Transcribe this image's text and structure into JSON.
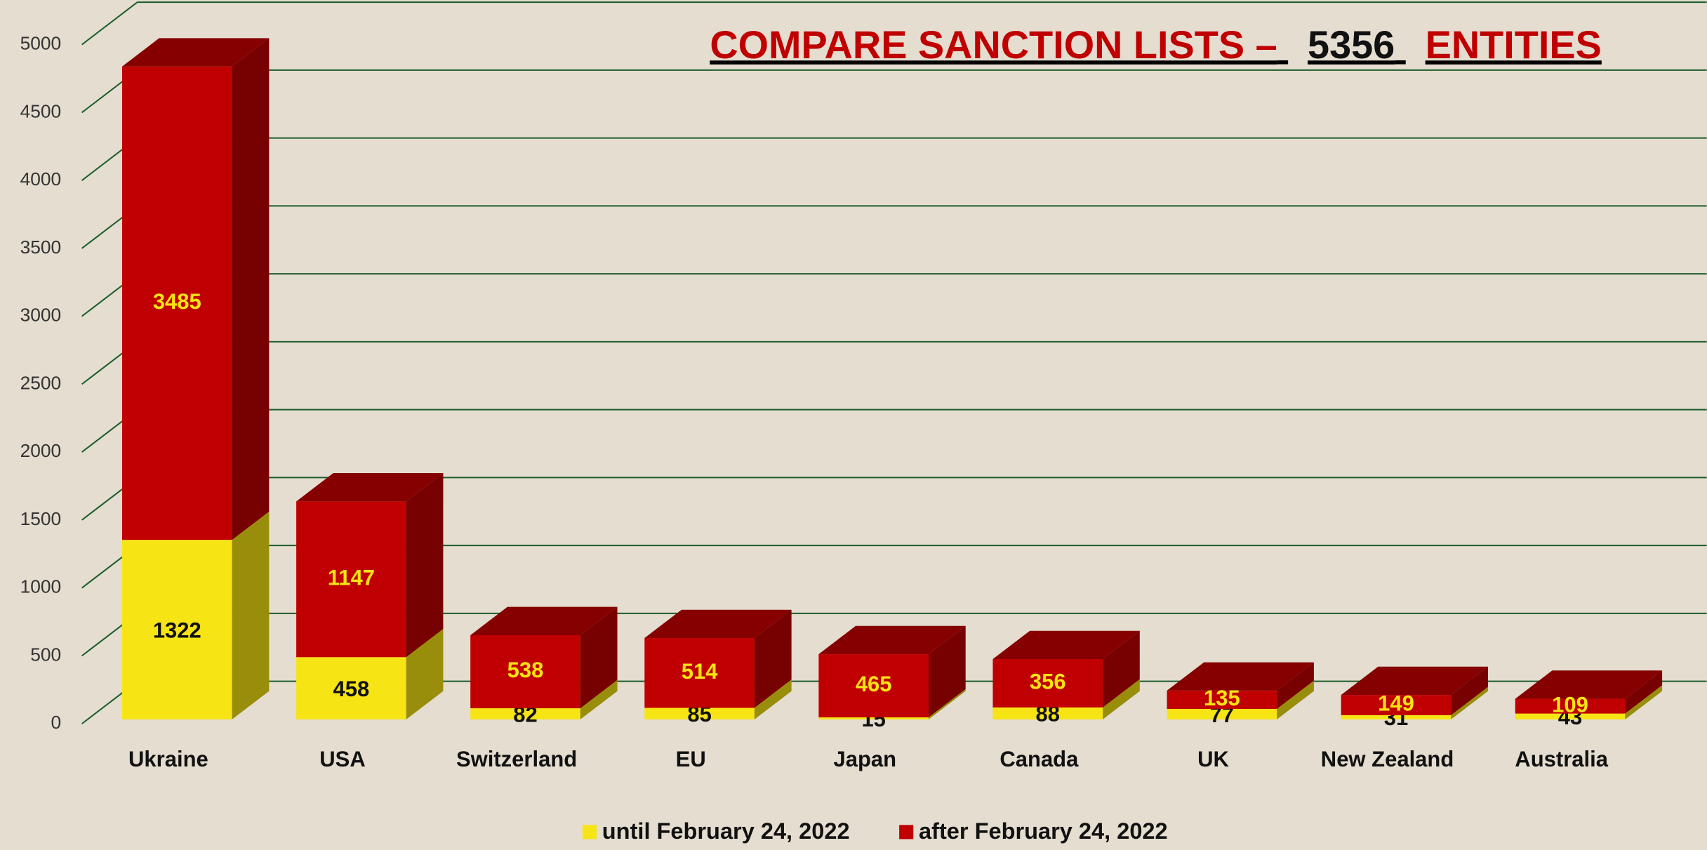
{
  "chart_data": {
    "type": "bar",
    "stacked": true,
    "title": [
      "COMPARE SANCTION LISTS –",
      "5356",
      "ENTITIES"
    ],
    "categories": [
      "Ukraine",
      "USA",
      "Switzerland",
      "EU",
      "Japan",
      "Canada",
      "UK",
      "New Zealand",
      "Australia"
    ],
    "series": [
      {
        "name": "until February 24, 2022",
        "color": "#f7e414",
        "values": [
          1322,
          458,
          82,
          85,
          15,
          88,
          77,
          31,
          43
        ]
      },
      {
        "name": "after February 24, 2022",
        "color": "#c00000",
        "values": [
          3485,
          1147,
          538,
          514,
          465,
          356,
          135,
          149,
          109
        ]
      }
    ],
    "ylim": [
      0,
      5000
    ],
    "yticks": [
      0,
      500,
      1000,
      1500,
      2000,
      2500,
      3000,
      3500,
      4000,
      4500,
      5000
    ],
    "grid": true
  }
}
